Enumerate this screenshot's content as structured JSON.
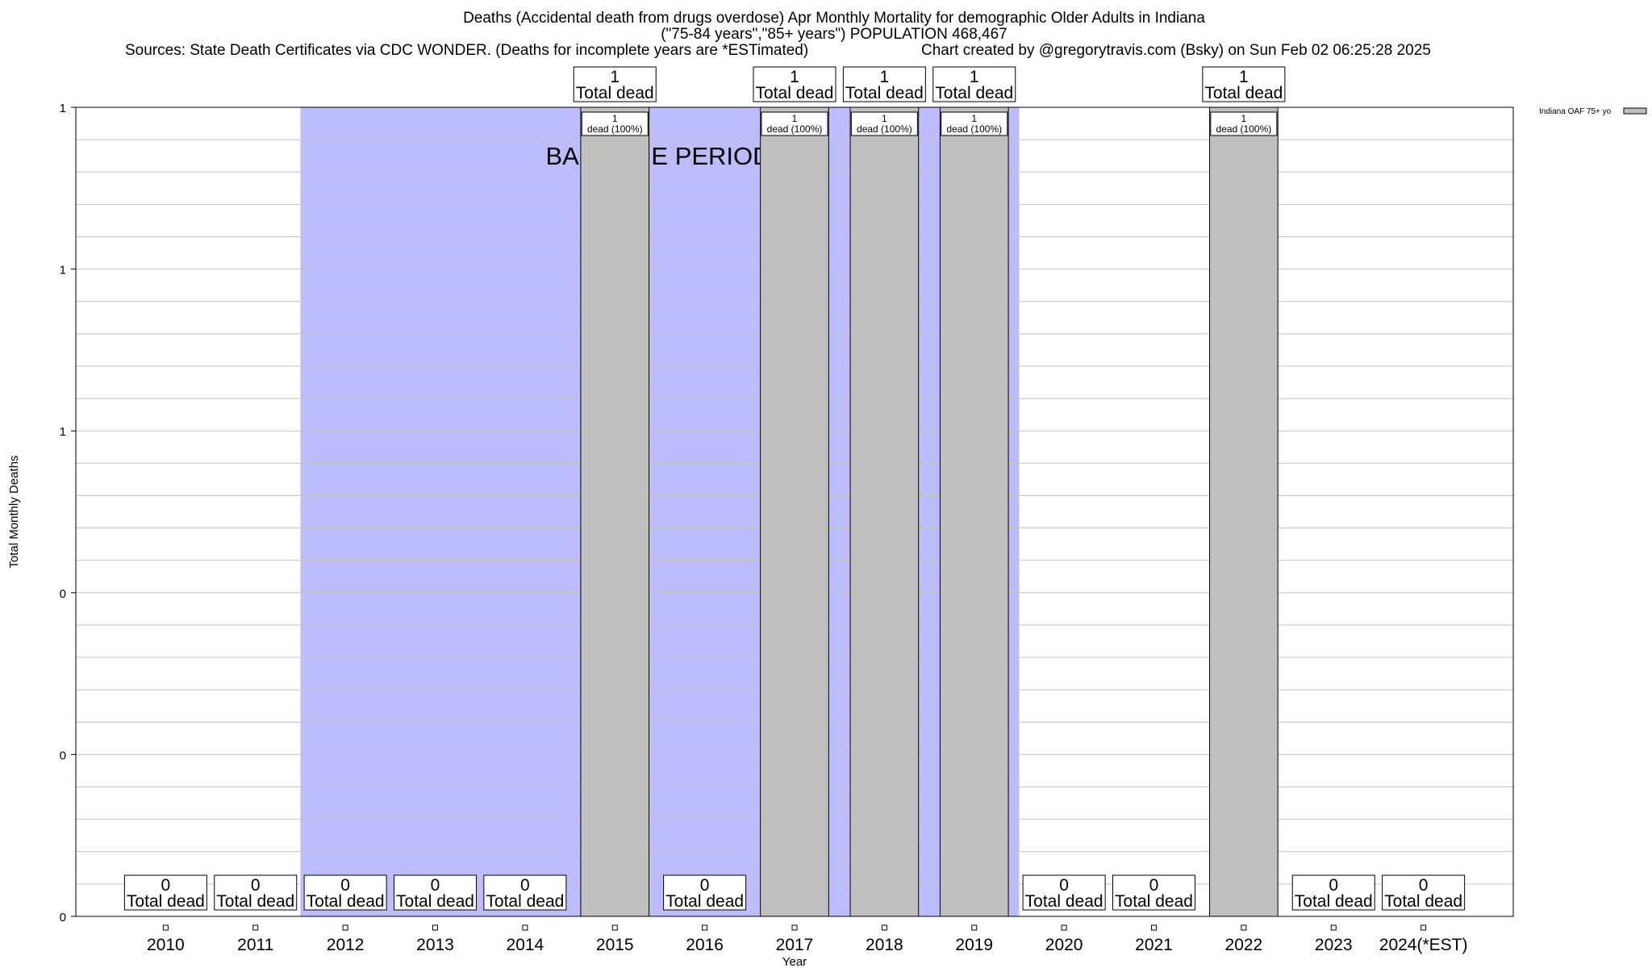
{
  "chart_data": {
    "type": "bar",
    "title": "Deaths (Accidental death from drugs overdose) Apr Monthly Mortality for demographic Older Adults in Indiana",
    "subtitle": "(\"75-84 years\",\"85+ years\") POPULATION 468,467",
    "source": "Sources: State Death Certificates via CDC WONDER. (Deaths for incomplete years are *ESTimated)",
    "credit": "Chart created by @gregorytravis.com (Bsky) on Sun Feb 02 06:25:28 2025",
    "xlabel": "Year",
    "ylabel": "Total Monthly Deaths",
    "ylim": [
      0,
      1
    ],
    "y_tick_labels": [
      "0",
      "0",
      "0",
      "1",
      "1",
      "1"
    ],
    "grid": true,
    "legend_position": "top-right",
    "series": [
      {
        "name": "Indiana OAF 75+ yo",
        "color": "#c0c0c0",
        "values": [
          0,
          0,
          0,
          0,
          0,
          1,
          0,
          1,
          1,
          1,
          0,
          0,
          1,
          0,
          0
        ]
      }
    ],
    "categories": [
      "2010",
      "2011",
      "2012",
      "2013",
      "2014",
      "2015",
      "2016",
      "2017",
      "2018",
      "2019",
      "2020",
      "2021",
      "2022",
      "2023",
      "2024(*EST)"
    ],
    "total_labels": [
      "0",
      "0",
      "0",
      "0",
      "0",
      "1",
      "0",
      "1",
      "1",
      "1",
      "0",
      "0",
      "1",
      "0",
      "0"
    ],
    "total_suffix": "Total dead",
    "bar_labels": [
      "",
      "",
      "",
      "",
      "",
      "1\ndead (100%)",
      "",
      "1\ndead (100%)",
      "1\ndead (100%)",
      "1\ndead (100%)",
      "",
      "",
      "1\ndead (100%)",
      "",
      ""
    ],
    "baseline_label": "BASELINE PERIOD",
    "baseline_start_year": "2012",
    "baseline_end_year": "2019",
    "baseline_color": "#bcbcff"
  }
}
